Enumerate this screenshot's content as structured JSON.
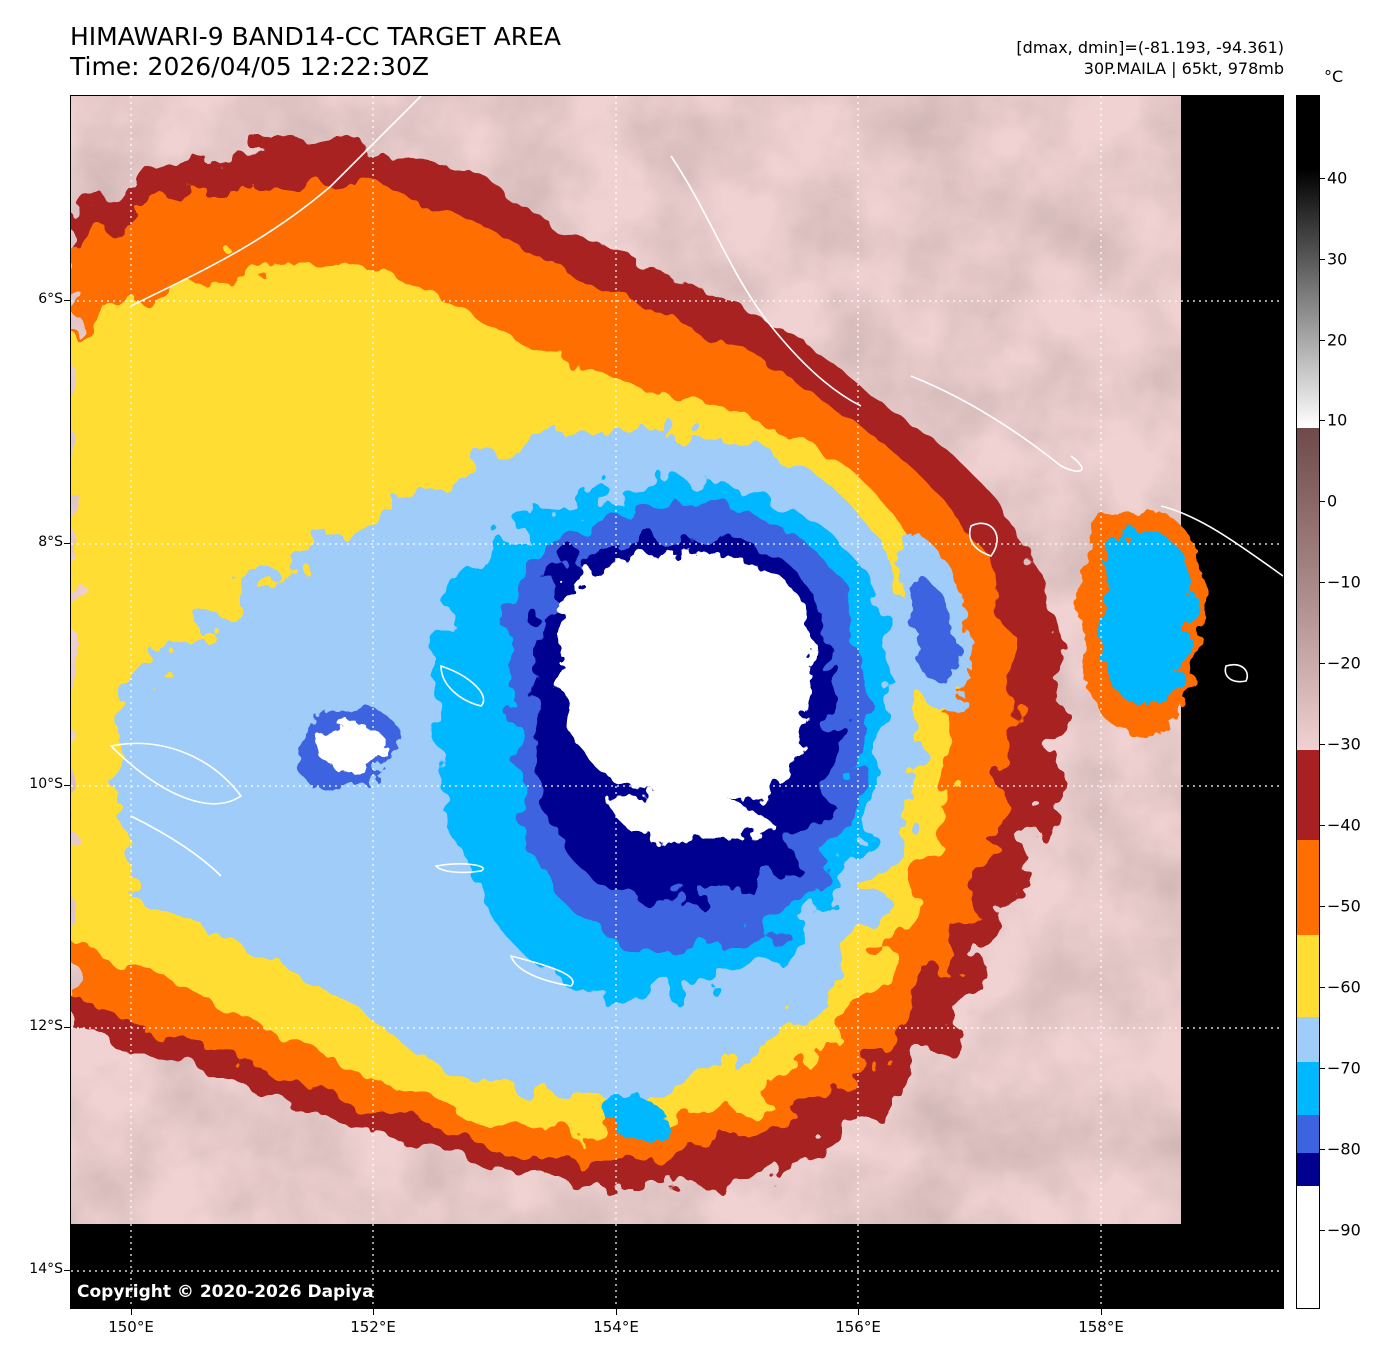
{
  "header": {
    "title_line1": "HIMAWARI-9 BAND14-CC TARGET AREA",
    "title_line2": "Time: 2026/04/05 12:22:30Z",
    "meta_line1": "[dmax, dmin]=(-81.193, -94.361)",
    "meta_line2": "30P.MAILA | 65kt, 978mb"
  },
  "map": {
    "copyright": "Copyright © 2020-2026 Dapiya",
    "lat_labels": [
      "6°S",
      "8°S",
      "10°S",
      "12°S",
      "14°S"
    ],
    "lon_labels": [
      "150°E",
      "152°E",
      "154°E",
      "156°E",
      "158°E"
    ]
  },
  "colorbar": {
    "unit": "°C",
    "tick_labels": [
      "40",
      "30",
      "20",
      "10",
      "0",
      "−10",
      "−20",
      "−30",
      "−40",
      "−50",
      "−60",
      "−70",
      "−80",
      "−90"
    ],
    "colors": {
      "white_cold": "#ffffff",
      "navy": "#000090",
      "royal_blue": "#3c64e0",
      "deep_sky": "#00b8ff",
      "light_blue": "#9fccf8",
      "yellow": "#ffdd33",
      "orange": "#ff6e00",
      "brown": "#a82022",
      "pink": "#f0d2d2",
      "mauve": "#8c6464",
      "black": "#000000"
    }
  }
}
